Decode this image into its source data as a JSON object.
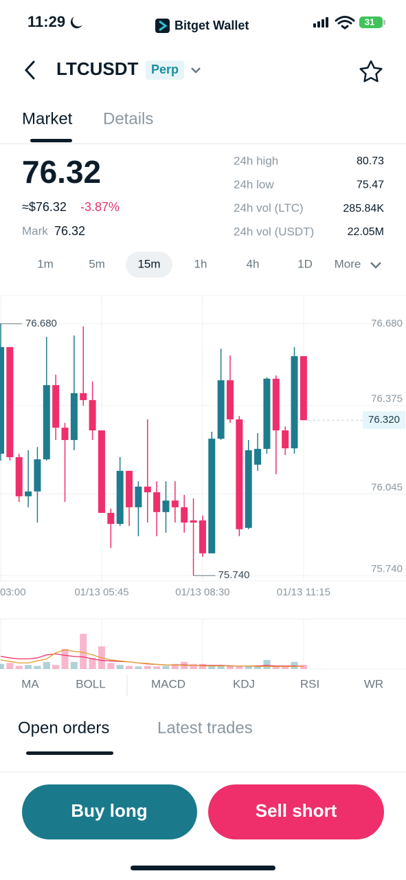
{
  "status_bar": {
    "time": "11:29",
    "app": "Bitget Wallet",
    "battery": "31"
  },
  "header": {
    "symbol": "LTCUSDT",
    "badge": "Perp"
  },
  "tabs": [
    "Market",
    "Details"
  ],
  "price": {
    "last": "76.32",
    "usd": "≈$76.32",
    "change": "-3.87%",
    "mark_label": "Mark",
    "mark": "76.32"
  },
  "stats": [
    {
      "label": "24h high",
      "value": "80.73"
    },
    {
      "label": "24h low",
      "value": "75.47"
    },
    {
      "label": "24h vol (LTC)",
      "value": "285.84K"
    },
    {
      "label": "24h vol (USDT)",
      "value": "22.05M"
    }
  ],
  "intervals": [
    "1m",
    "5m",
    "15m",
    "1h",
    "4h",
    "1D",
    "More"
  ],
  "chart_data": [
    {
      "type": "candlestick",
      "categories": [
        "03:00",
        null,
        null,
        null,
        null,
        null,
        null,
        null,
        null,
        null,
        null,
        "01/13 05:45",
        null,
        null,
        null,
        null,
        null,
        null,
        null,
        null,
        null,
        null,
        "01/13 08:30",
        null,
        null,
        null,
        null,
        null,
        null,
        null,
        null,
        null,
        null,
        "01/13 11:15"
      ],
      "open": [
        76.195,
        76.593,
        76.182,
        76.036,
        76.054,
        76.174,
        76.451,
        76.292,
        76.246,
        76.421,
        76.395,
        76.282,
        75.974,
        75.933,
        76.131,
        75.995,
        76.072,
        76.051,
        75.977,
        76.02,
        75.995,
        75.946,
        75.946,
        75.823,
        76.251,
        76.469,
        76.323,
        75.918,
        76.154,
        76.213,
        76.475,
        76.282,
        76.215,
        76.559
      ],
      "high": [
        76.68,
        76.593,
        76.195,
        76.208,
        76.22,
        76.631,
        76.49,
        76.31,
        76.636,
        76.67,
        76.464,
        76.282,
        75.99,
        76.182,
        76.131,
        76.092,
        76.323,
        76.092,
        76.092,
        76.092,
        76.041,
        76.028,
        75.964,
        76.277,
        76.587,
        76.562,
        76.336,
        76.246,
        76.272,
        76.48,
        76.487,
        76.297,
        76.593,
        76.559
      ],
      "low": [
        76.169,
        76.169,
        76.015,
        75.995,
        75.938,
        76.169,
        76.246,
        76.015,
        76.208,
        76.374,
        76.246,
        75.974,
        75.843,
        75.925,
        75.925,
        75.887,
        75.938,
        75.887,
        75.9,
        75.938,
        75.9,
        75.74,
        75.81,
        75.823,
        76.246,
        76.31,
        75.887,
        75.913,
        76.131,
        76.195,
        76.118,
        76.19,
        76.195,
        76.32
      ],
      "close": [
        76.593,
        76.182,
        76.036,
        76.054,
        76.174,
        76.451,
        76.292,
        76.246,
        76.421,
        76.395,
        76.282,
        75.974,
        75.933,
        76.131,
        75.995,
        76.072,
        76.051,
        75.977,
        76.02,
        75.995,
        75.938,
        75.938,
        75.823,
        76.251,
        76.469,
        76.323,
        75.913,
        76.208,
        76.213,
        76.475,
        76.282,
        76.215,
        76.559,
        76.32
      ],
      "up_color": "#1f7b8e",
      "down_color": "#ee2f6c",
      "ylim": [
        75.72,
        76.785
      ],
      "yticks": [
        {
          "value": 76.68,
          "label": "76.680"
        },
        {
          "value": 76.375,
          "label": "76.375"
        },
        {
          "value": 76.045,
          "label": "76.045"
        },
        {
          "value": 75.74,
          "label": "75.740"
        }
      ],
      "grid": true,
      "high_marker": {
        "value": 76.68,
        "label": "76.680"
      },
      "low_marker": {
        "value": 75.74,
        "label": "75.740"
      },
      "last_marker": {
        "value": 76.32,
        "label": "76.320"
      }
    },
    {
      "type": "bar",
      "values": [
        10,
        12,
        6,
        8,
        6,
        14,
        8,
        40,
        14,
        70,
        22,
        45,
        12,
        8,
        6,
        5,
        6,
        5,
        6,
        10,
        14,
        10,
        10,
        8,
        8,
        8,
        6,
        6,
        6,
        18,
        6,
        6,
        14,
        8
      ],
      "ylim": [
        0,
        100
      ],
      "lines": [
        {
          "color": "#e8336b",
          "values": [
            25,
            22,
            20,
            20,
            22,
            28,
            30,
            27,
            25,
            24,
            20,
            17,
            16,
            15,
            14,
            12,
            10,
            9,
            8,
            8,
            8,
            7,
            7,
            7,
            7,
            6,
            6,
            6,
            6,
            7,
            6,
            6,
            6,
            5
          ]
        },
        {
          "color": "#e0a030",
          "values": [
            18,
            15,
            12,
            12,
            16,
            20,
            32,
            38,
            35,
            33,
            28,
            22,
            18,
            16,
            14,
            12,
            11,
            9,
            8,
            8,
            7,
            7,
            6,
            6,
            6,
            6,
            6,
            6,
            5,
            5,
            5,
            5,
            5,
            5
          ]
        }
      ]
    }
  ],
  "indicators": [
    "MA",
    "BOLL",
    "MACD",
    "KDJ",
    "RSI",
    "WR"
  ],
  "order_tabs": [
    "Open orders",
    "Latest trades"
  ],
  "buttons": [
    "Buy long",
    "Sell short"
  ]
}
